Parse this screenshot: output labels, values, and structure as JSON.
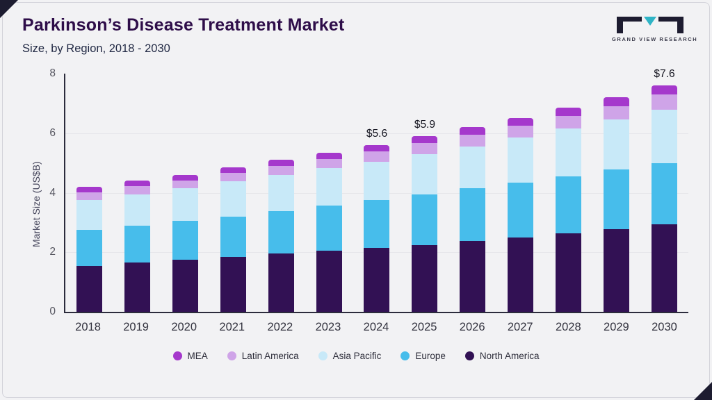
{
  "header": {
    "title": "Parkinson’s Disease Treatment Market",
    "subtitle": "Size, by Region, 2018 - 2030",
    "logo_text": "GRAND VIEW RESEARCH"
  },
  "colors": {
    "accent_purple": "#2e0d49",
    "logo_dark": "#1d1c30",
    "logo_teal": "#2fb4c6",
    "axis": "#2c2c3c"
  },
  "chart_data": {
    "type": "bar",
    "stacked": true,
    "title": "Parkinson’s Disease Treatment Market Size, by Region, 2018 - 2030",
    "ylabel": "Market Size (US$B)",
    "ylim": [
      0,
      8
    ],
    "yticks": [
      0,
      2,
      4,
      6,
      8
    ],
    "gridlines": [
      2,
      4,
      6
    ],
    "legend_position": "bottom",
    "categories": [
      "2018",
      "2019",
      "2020",
      "2021",
      "2022",
      "2023",
      "2024",
      "2025",
      "2026",
      "2027",
      "2028",
      "2029",
      "2030"
    ],
    "series": [
      {
        "name": "North America",
        "color": "#321154",
        "values": [
          1.55,
          1.65,
          1.75,
          1.85,
          1.95,
          2.05,
          2.15,
          2.25,
          2.38,
          2.5,
          2.63,
          2.78,
          2.95
        ]
      },
      {
        "name": "Europe",
        "color": "#47bdeb",
        "values": [
          1.2,
          1.25,
          1.3,
          1.35,
          1.43,
          1.52,
          1.6,
          1.7,
          1.77,
          1.85,
          1.92,
          2.0,
          2.05
        ]
      },
      {
        "name": "Asia Pacific",
        "color": "#c8e9f8",
        "values": [
          1.0,
          1.05,
          1.1,
          1.18,
          1.22,
          1.25,
          1.3,
          1.35,
          1.4,
          1.5,
          1.6,
          1.67,
          1.78
        ]
      },
      {
        "name": "Latin America",
        "color": "#cfa4e8",
        "values": [
          0.27,
          0.27,
          0.27,
          0.28,
          0.3,
          0.32,
          0.33,
          0.36,
          0.4,
          0.4,
          0.42,
          0.45,
          0.52
        ]
      },
      {
        "name": "MEA",
        "color": "#a538cc",
        "values": [
          0.18,
          0.18,
          0.18,
          0.19,
          0.2,
          0.21,
          0.22,
          0.24,
          0.25,
          0.25,
          0.28,
          0.3,
          0.3
        ]
      }
    ],
    "totals": [
      4.2,
      4.4,
      4.6,
      4.85,
      5.1,
      5.35,
      5.6,
      5.9,
      6.2,
      6.5,
      6.85,
      7.2,
      7.6
    ],
    "annotations": [
      {
        "category": "2024",
        "label": "$5.6"
      },
      {
        "category": "2025",
        "label": "$5.9"
      },
      {
        "category": "2030",
        "label": "$7.6"
      }
    ],
    "legend": [
      "MEA",
      "Latin America",
      "Asia Pacific",
      "Europe",
      "North America"
    ]
  }
}
